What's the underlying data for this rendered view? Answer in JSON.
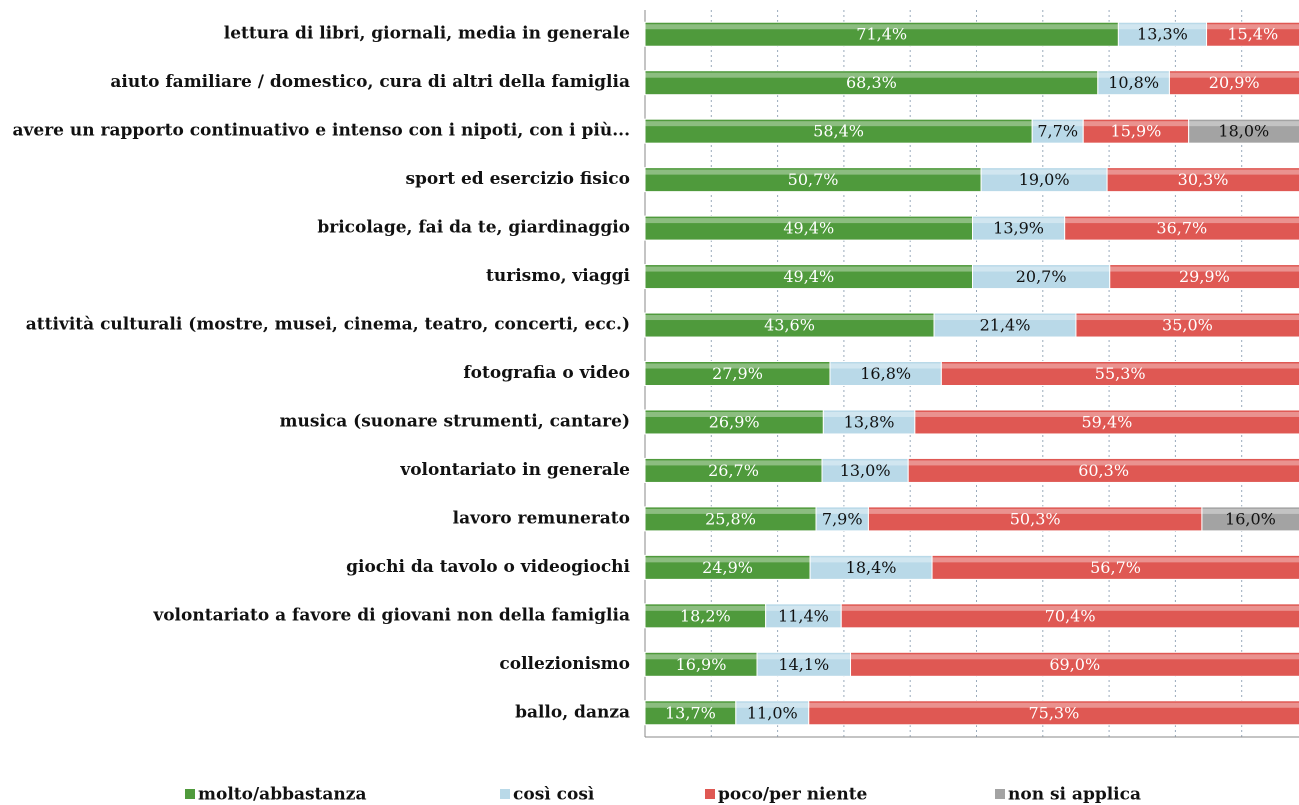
{
  "chart_data": {
    "type": "stacked_bar_horizontal",
    "categories": [
      "lettura di libri, giornali, media in generale",
      "aiuto familiare / domestico, cura di altri della famiglia",
      "avere un rapporto continuativo e intenso con i nipoti, con i più...",
      "sport ed esercizio fisico",
      "bricolage, fai da te, giardinaggio",
      "turismo, viaggi",
      "attività culturali (mostre, musei, cinema, teatro, concerti, ecc.)",
      "fotografia o video",
      "musica (suonare strumenti, cantare)",
      "volontariato in generale",
      "lavoro remunerato",
      "giochi da tavolo o videogiochi",
      "volontariato a favore di giovani non della famiglia",
      "collezionismo",
      "ballo, danza"
    ],
    "series": [
      {
        "name": "molto/abbastanza",
        "color": "#4f9a3c",
        "values": [
          71.4,
          68.3,
          58.4,
          50.7,
          49.4,
          49.4,
          43.6,
          27.9,
          26.9,
          26.7,
          25.8,
          24.9,
          18.2,
          16.9,
          13.7
        ],
        "value_labels": [
          "71,4%",
          "68,3%",
          "58,4%",
          "50,7%",
          "49,4%",
          "49,4%",
          "43,6%",
          "27,9%",
          "26,9%",
          "26,7%",
          "25,8%",
          "24,9%",
          "18,2%",
          "16,9%",
          "13,7%"
        ]
      },
      {
        "name": "così così",
        "color": "#b9d9e8",
        "values": [
          13.3,
          10.8,
          7.7,
          19.0,
          13.9,
          20.7,
          21.4,
          16.8,
          13.8,
          13.0,
          7.9,
          18.4,
          11.4,
          14.1,
          11.0
        ],
        "value_labels": [
          "13,3%",
          "10,8%",
          "7,7%",
          "19,0%",
          "13,9%",
          "20,7%",
          "21,4%",
          "16,8%",
          "13,8%",
          "13,0%",
          "7,9%",
          "18,4%",
          "11,4%",
          "14,1%",
          "11,0%"
        ]
      },
      {
        "name": "poco/per niente",
        "color": "#df5853",
        "values": [
          15.4,
          20.9,
          15.9,
          30.3,
          36.7,
          29.9,
          35.0,
          55.3,
          59.4,
          60.3,
          50.3,
          56.7,
          70.4,
          69.0,
          75.3
        ],
        "value_labels": [
          "15,4%",
          "20,9%",
          "15,9%",
          "30,3%",
          "36,7%",
          "29,9%",
          "35,0%",
          "55,3%",
          "59,4%",
          "60,3%",
          "50,3%",
          "56,7%",
          "70,4%",
          "69,0%",
          "75,3%"
        ]
      },
      {
        "name": "non si applica",
        "color": "#a3a3a3",
        "values": [
          null,
          null,
          18.0,
          null,
          null,
          null,
          null,
          null,
          null,
          null,
          16.0,
          null,
          null,
          null,
          null
        ],
        "value_labels": [
          null,
          null,
          "18,0%",
          null,
          null,
          null,
          null,
          null,
          null,
          null,
          "16,0%",
          null,
          null,
          null,
          null
        ]
      }
    ],
    "xlim": [
      0,
      100
    ],
    "xticks": [
      0,
      10,
      20,
      30,
      40,
      50,
      60,
      70,
      80,
      90,
      100
    ],
    "grid": true,
    "legend": "bottom"
  }
}
